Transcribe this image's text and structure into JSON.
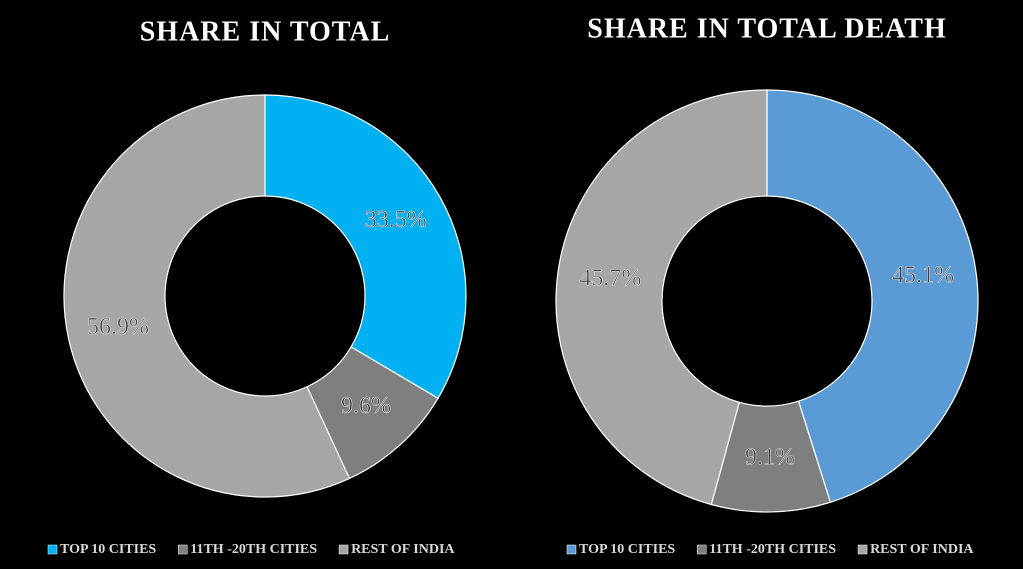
{
  "chart_data": [
    {
      "type": "donut",
      "title": "SHARE IN TOTAL",
      "categories": [
        "TOP 10 CITIES",
        "11TH -20TH CITIES",
        "REST OF INDIA"
      ],
      "values": [
        33.5,
        9.6,
        56.9
      ],
      "value_labels": [
        "33.5%",
        "9.6%",
        "56.9%"
      ],
      "colors": [
        "#00b0f0",
        "#7f7f7f",
        "#a6a6a6"
      ],
      "legend": "bottom"
    },
    {
      "type": "donut",
      "title": "SHARE IN TOTAL DEATH",
      "categories": [
        "TOP 10 CITIES",
        "11TH -20TH CITIES",
        "REST OF INDIA"
      ],
      "values": [
        45.1,
        9.1,
        45.7
      ],
      "value_labels": [
        "45.1%",
        "9.1%",
        "45.7%"
      ],
      "colors": [
        "#5b9bd5",
        "#7f7f7f",
        "#a6a6a6"
      ],
      "legend": "bottom"
    }
  ]
}
